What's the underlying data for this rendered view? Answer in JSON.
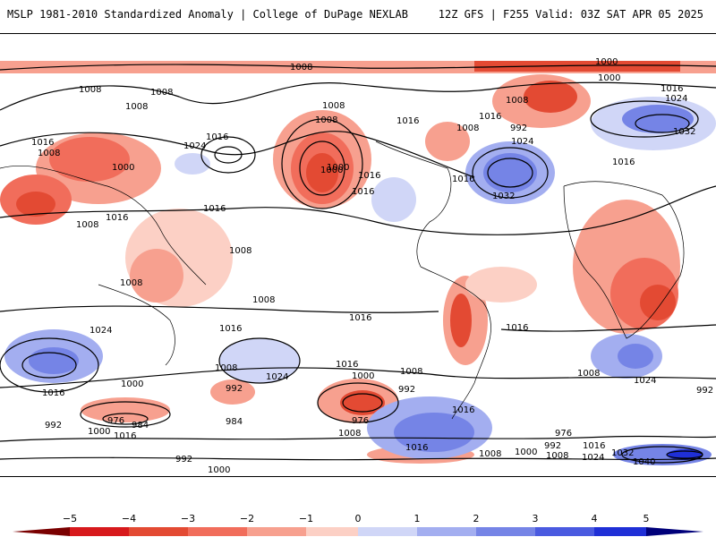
{
  "header": {
    "left": "MSLP 1981-2010 Standardized Anomaly | College of DuPage NEXLAB",
    "right": "12Z GFS | F255 Valid: 03Z SAT APR 05 2025"
  },
  "colors": {
    "neg5": "#d7191c",
    "neg4": "#e34a33",
    "neg3": "#f16d5b",
    "neg2": "#f7a08f",
    "neg1": "#fcd0c5",
    "zero": "#ffffff",
    "pos1": "#d0d6f7",
    "pos2": "#a3aef0",
    "pos3": "#7584e6",
    "pos4": "#4a5ae0",
    "pos5": "#1f2fd6"
  },
  "colorbar": {
    "ticks": [
      "−5",
      "−4",
      "−3",
      "−2",
      "−1",
      "0",
      "1",
      "2",
      "3",
      "4",
      "5"
    ]
  },
  "isobar_labels": [
    "1008",
    "1008",
    "1008",
    "1008",
    "1016",
    "1016",
    "1008",
    "1000",
    "1024",
    "1016",
    "1016",
    "1008",
    "1016",
    "1000",
    "1008",
    "1016",
    "1016",
    "1000",
    "1008",
    "1008",
    "1008",
    "1016",
    "1016",
    "1016",
    "1024",
    "1032",
    "1000",
    "1000",
    "1008",
    "992",
    "1016",
    "1024",
    "1032",
    "1024",
    "1016",
    "1008",
    "1008",
    "1016",
    "1016",
    "1008",
    "1016",
    "1024",
    "1016",
    "1000",
    "992",
    "1008",
    "992",
    "1008",
    "1000",
    "976",
    "1008",
    "1016",
    "992",
    "1024",
    "976",
    "984",
    "984",
    "1016",
    "1000",
    "992",
    "1008",
    "1016",
    "976",
    "1024",
    "1032",
    "1040",
    "992",
    "1000",
    "1008",
    "992",
    "1000",
    "1016"
  ]
}
